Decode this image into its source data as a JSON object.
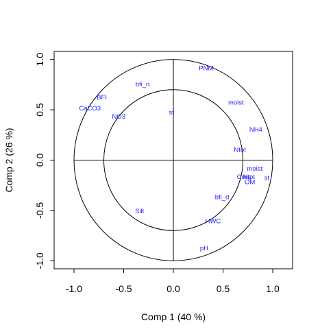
{
  "chart_data": {
    "type": "scatter",
    "title": "",
    "xlabel": "Comp 1 (40 %)",
    "ylabel": "Comp 2 (26 %)",
    "xlim": [
      -1.2,
      1.2
    ],
    "ylim": [
      -1.08,
      1.08
    ],
    "x_ticks": [
      "-1.0",
      "-0.5",
      "0.0",
      "0.5",
      "1.0"
    ],
    "y_ticks": [
      "-1.0",
      "-0.5",
      "0.0",
      "0.5",
      "1.0"
    ],
    "circles": [
      {
        "radius": 1.0
      },
      {
        "radius": 0.7
      }
    ],
    "reference_lines": {
      "x": 0,
      "y": 0
    },
    "grid": false,
    "label_color": "#1a1aff",
    "points": [
      {
        "label": "PNM",
        "x": 0.33,
        "y": 0.91
      },
      {
        "label": "bfi_n",
        "x": -0.31,
        "y": 0.75
      },
      {
        "label": "moist",
        "x": 0.63,
        "y": 0.57
      },
      {
        "label": "BFI",
        "x": -0.72,
        "y": 0.62
      },
      {
        "label": "CaCO3",
        "x": -0.84,
        "y": 0.51
      },
      {
        "label": "st",
        "x": -0.02,
        "y": 0.47
      },
      {
        "label": "NO3",
        "x": -0.55,
        "y": 0.43
      },
      {
        "label": "NH4",
        "x": 0.83,
        "y": 0.3
      },
      {
        "label": "Ntot",
        "x": 0.67,
        "y": 0.1
      },
      {
        "label": "moist",
        "x": 0.82,
        "y": -0.09
      },
      {
        "label": "Corg",
        "x": 0.71,
        "y": -0.17
      },
      {
        "label": "Ntot",
        "x": 0.76,
        "y": -0.17
      },
      {
        "label": "st",
        "x": 0.94,
        "y": -0.18
      },
      {
        "label": "OM",
        "x": 0.77,
        "y": -0.22
      },
      {
        "label": "bfi_d",
        "x": 0.49,
        "y": -0.37
      },
      {
        "label": "Silt",
        "x": -0.34,
        "y": -0.51
      },
      {
        "label": "HWC",
        "x": 0.4,
        "y": -0.61
      },
      {
        "label": "pH",
        "x": 0.31,
        "y": -0.88
      }
    ]
  }
}
